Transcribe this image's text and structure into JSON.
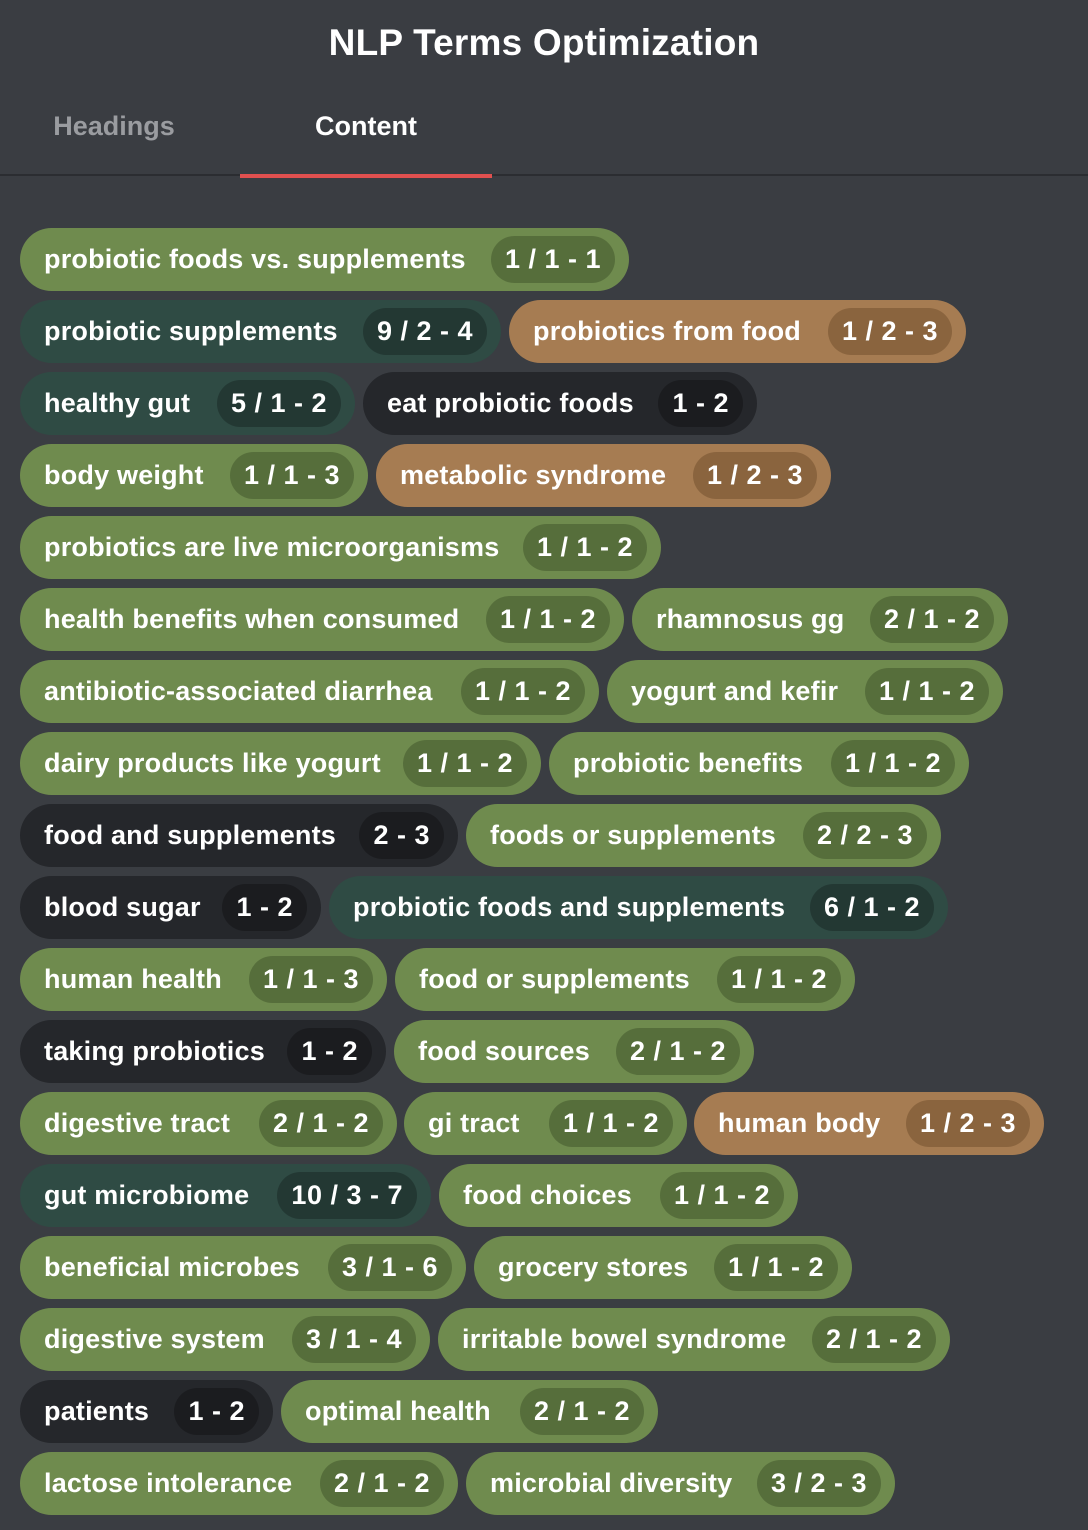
{
  "header": {
    "title": "NLP Terms Optimization"
  },
  "tabs": [
    {
      "label": "Headings",
      "active": false
    },
    {
      "label": "Content",
      "active": true
    }
  ],
  "colors": {
    "background": "#3a3d42",
    "active_tab_underline": "#e0504f",
    "green": "#6f8b4e",
    "dark_green": "#2f4b44",
    "orange": "#a67c52",
    "black": "#25272b"
  },
  "terms": [
    {
      "label": "probiotic foods vs. supplements",
      "count": "1 / 1 - 1",
      "color": "green"
    },
    {
      "label": "probiotic supplements",
      "count": "9 / 2 - 4",
      "color": "darkgreen"
    },
    {
      "label": "probiotics from food",
      "count": "1 / 2 - 3",
      "color": "orange"
    },
    {
      "label": "healthy gut",
      "count": "5 / 1 - 2",
      "color": "darkgreen"
    },
    {
      "label": "eat probiotic foods",
      "count": "1 - 2",
      "color": "black"
    },
    {
      "label": "body weight",
      "count": "1 / 1 - 3",
      "color": "green"
    },
    {
      "label": "metabolic syndrome",
      "count": "1 / 2 - 3",
      "color": "orange"
    },
    {
      "label": "probiotics are live microorganisms",
      "count": "1 / 1 - 2",
      "color": "green"
    },
    {
      "label": "health benefits when consumed",
      "count": "1 / 1 - 2",
      "color": "green"
    },
    {
      "label": "rhamnosus gg",
      "count": "2 / 1 - 2",
      "color": "green"
    },
    {
      "label": "antibiotic-associated diarrhea",
      "count": "1 / 1 - 2",
      "color": "green"
    },
    {
      "label": "yogurt and kefir",
      "count": "1 / 1 - 2",
      "color": "green"
    },
    {
      "label": "dairy products like yogurt",
      "count": "1 / 1 - 2",
      "color": "green"
    },
    {
      "label": "probiotic benefits",
      "count": "1 / 1 - 2",
      "color": "green"
    },
    {
      "label": "food and supplements",
      "count": "2 - 3",
      "color": "black"
    },
    {
      "label": "foods or supplements",
      "count": "2 / 2 - 3",
      "color": "green"
    },
    {
      "label": "blood sugar",
      "count": "1 - 2",
      "color": "black"
    },
    {
      "label": "probiotic foods and supplements",
      "count": "6 / 1 - 2",
      "color": "darkgreen"
    },
    {
      "label": "human health",
      "count": "1 / 1 - 3",
      "color": "green"
    },
    {
      "label": "food or supplements",
      "count": "1 / 1 - 2",
      "color": "green"
    },
    {
      "label": "taking probiotics",
      "count": "1 - 2",
      "color": "black"
    },
    {
      "label": "food sources",
      "count": "2 / 1 - 2",
      "color": "green"
    },
    {
      "label": "digestive tract",
      "count": "2 / 1 - 2",
      "color": "green"
    },
    {
      "label": "gi tract",
      "count": "1 / 1 - 2",
      "color": "green"
    },
    {
      "label": "human body",
      "count": "1 / 2 - 3",
      "color": "orange"
    },
    {
      "label": "gut microbiome",
      "count": "10 / 3 - 7",
      "color": "darkgreen"
    },
    {
      "label": "food choices",
      "count": "1 / 1 - 2",
      "color": "green"
    },
    {
      "label": "beneficial microbes",
      "count": "3 / 1 - 6",
      "color": "green"
    },
    {
      "label": "grocery stores",
      "count": "1 / 1 - 2",
      "color": "green"
    },
    {
      "label": "digestive system",
      "count": "3 / 1 - 4",
      "color": "green"
    },
    {
      "label": "irritable bowel syndrome",
      "count": "2 / 1 - 2",
      "color": "green"
    },
    {
      "label": "patients",
      "count": "1 - 2",
      "color": "black"
    },
    {
      "label": "optimal health",
      "count": "2 / 1 - 2",
      "color": "green"
    },
    {
      "label": "lactose intolerance",
      "count": "2 / 1 - 2",
      "color": "green"
    },
    {
      "label": "microbial diversity",
      "count": "3 / 2 - 3",
      "color": "green"
    }
  ]
}
